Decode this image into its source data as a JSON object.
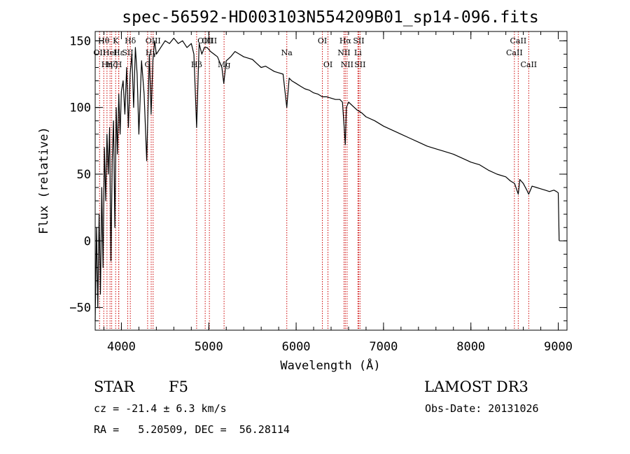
{
  "chart_data": {
    "type": "line",
    "title": "spec-56592-HD003103N554209B01_sp14-096.fits",
    "xlabel": "Wavelength (Å)",
    "ylabel": "Flux (relative)",
    "xlim": [
      3700,
      9100
    ],
    "ylim": [
      -67,
      157
    ],
    "x_ticks": [
      4000,
      5000,
      6000,
      7000,
      8000,
      9000
    ],
    "y_ticks": [
      -50,
      0,
      50,
      100,
      150
    ],
    "x_minor_step": 200,
    "y_minor_step": 10,
    "series": [
      {
        "name": "spectrum",
        "color": "#000000",
        "x": [
          3700,
          3715,
          3730,
          3745,
          3760,
          3775,
          3790,
          3805,
          3820,
          3835,
          3850,
          3865,
          3880,
          3895,
          3910,
          3925,
          3940,
          3955,
          3970,
          3985,
          4000,
          4020,
          4040,
          4060,
          4080,
          4100,
          4120,
          4140,
          4160,
          4180,
          4200,
          4230,
          4260,
          4290,
          4320,
          4340,
          4360,
          4380,
          4400,
          4450,
          4500,
          4550,
          4600,
          4650,
          4700,
          4750,
          4800,
          4830,
          4861,
          4890,
          4920,
          4950,
          4980,
          5020,
          5060,
          5100,
          5150,
          5172,
          5200,
          5250,
          5300,
          5350,
          5400,
          5450,
          5500,
          5550,
          5600,
          5650,
          5700,
          5750,
          5800,
          5850,
          5893,
          5920,
          5950,
          6000,
          6050,
          6100,
          6150,
          6200,
          6250,
          6300,
          6350,
          6400,
          6450,
          6500,
          6530,
          6550,
          6563,
          6575,
          6600,
          6650,
          6700,
          6750,
          6800,
          6900,
          7000,
          7100,
          7200,
          7300,
          7400,
          7500,
          7600,
          7700,
          7800,
          7900,
          8000,
          8100,
          8200,
          8300,
          8400,
          8450,
          8500,
          8542,
          8560,
          8600,
          8640,
          8662,
          8700,
          8750,
          8800,
          8850,
          8900,
          8950,
          8980,
          9000,
          9005,
          9010
        ],
        "values": [
          -60,
          10,
          -50,
          20,
          -40,
          40,
          -20,
          70,
          30,
          80,
          50,
          85,
          -15,
          60,
          90,
          10,
          100,
          65,
          110,
          80,
          112,
          120,
          95,
          130,
          85,
          125,
          140,
          100,
          145,
          125,
          80,
          135,
          110,
          60,
          140,
          95,
          135,
          150,
          140,
          145,
          150,
          148,
          152,
          148,
          150,
          145,
          148,
          140,
          85,
          148,
          140,
          145,
          145,
          142,
          140,
          138,
          130,
          118,
          135,
          138,
          142,
          140,
          138,
          137,
          136,
          133,
          130,
          131,
          129,
          127,
          126,
          125,
          100,
          122,
          120,
          118,
          116,
          114,
          113,
          111,
          110,
          108,
          108,
          107,
          106,
          106,
          104,
          85,
          72,
          100,
          104,
          101,
          98,
          96,
          93,
          90,
          86,
          83,
          80,
          77,
          74,
          71,
          69,
          67,
          65,
          62,
          59,
          57,
          53,
          50,
          48,
          45,
          43,
          35,
          46,
          43,
          38,
          35,
          41,
          40,
          39,
          38,
          37,
          38,
          37,
          36,
          20,
          0
        ]
      }
    ],
    "lines": [
      {
        "wave": 3750,
        "label": "OII",
        "row": 1
      },
      {
        "wave": 3798,
        "label": "Hθ",
        "row": 0
      },
      {
        "wave": 3835,
        "label": "Hη",
        "row": 2
      },
      {
        "wave": 3870,
        "label": "HeI",
        "row": 1
      },
      {
        "wave": 3889,
        "label": "Hζ",
        "row": 2
      },
      {
        "wave": 3934,
        "label": "K",
        "row": 0
      },
      {
        "wave": 3969,
        "label": "H",
        "row": 2
      },
      {
        "wave": 3970,
        "label": "Hε",
        "row": 1
      },
      {
        "wave": 4072,
        "label": "SII",
        "row": 1
      },
      {
        "wave": 4102,
        "label": "Hδ",
        "row": 0
      },
      {
        "wave": 4300,
        "label": "G",
        "row": 2
      },
      {
        "wave": 4341,
        "label": "Hγ",
        "row": 1
      },
      {
        "wave": 4363,
        "label": "OIII",
        "row": 0
      },
      {
        "wave": 4861,
        "label": "Hβ",
        "row": 2
      },
      {
        "wave": 4959,
        "label": "OIII",
        "row": 0
      },
      {
        "wave": 5007,
        "label": "OIII",
        "row": 0
      },
      {
        "wave": 5175,
        "label": "Mg",
        "row": 2
      },
      {
        "wave": 5893,
        "label": "Na",
        "row": 1
      },
      {
        "wave": 6300,
        "label": "OI",
        "row": 0
      },
      {
        "wave": 6364,
        "label": "OI",
        "row": 2
      },
      {
        "wave": 6548,
        "label": "NII",
        "row": 1
      },
      {
        "wave": 6563,
        "label": "Hα",
        "row": 0
      },
      {
        "wave": 6583,
        "label": "NII",
        "row": 2
      },
      {
        "wave": 6707,
        "label": "Li",
        "row": 1
      },
      {
        "wave": 6716,
        "label": "SII",
        "row": 0
      },
      {
        "wave": 6731,
        "label": "SII",
        "row": 2
      },
      {
        "wave": 8498,
        "label": "CaII",
        "row": 1
      },
      {
        "wave": 8542,
        "label": "CaII",
        "row": 0
      },
      {
        "wave": 8662,
        "label": "CaII",
        "row": 2
      }
    ]
  },
  "info": {
    "class_label": "STAR",
    "subclass": "F5",
    "survey": "LAMOST DR3",
    "cz_line": "cz = -21.4 ± 6.3 km/s",
    "obs_date": "Obs-Date: 20131026",
    "coords": "RA =   5.20509, DEC =  56.28114"
  }
}
